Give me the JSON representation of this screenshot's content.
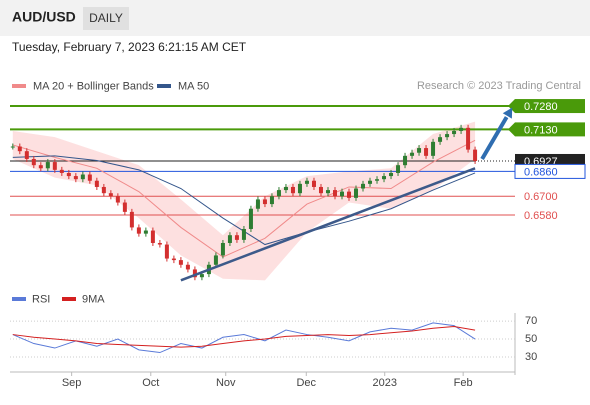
{
  "header": {
    "symbol": "AUD/USD",
    "period": "DAILY",
    "timestamp": "Tuesday, February 7, 2023 6:21:15 AM CET",
    "credit": "Research © 2023 Trading Central"
  },
  "chart_data": {
    "type": "candlestick",
    "close": [
      0.702,
      0.699,
      0.694,
      0.69,
      0.688,
      0.692,
      0.687,
      0.685,
      0.683,
      0.681,
      0.684,
      0.68,
      0.676,
      0.672,
      0.67,
      0.666,
      0.66,
      0.65,
      0.646,
      0.648,
      0.64,
      0.639,
      0.63,
      0.629,
      0.626,
      0.623,
      0.618,
      0.62,
      0.626,
      0.632,
      0.64,
      0.645,
      0.642,
      0.649,
      0.662,
      0.668,
      0.665,
      0.67,
      0.674,
      0.676,
      0.672,
      0.678,
      0.68,
      0.676,
      0.672,
      0.674,
      0.67,
      0.673,
      0.669,
      0.675,
      0.678,
      0.68,
      0.681,
      0.683,
      0.685,
      0.69,
      0.696,
      0.698,
      0.701,
      0.696,
      0.705,
      0.708,
      0.71,
      0.712,
      0.714,
      0.7,
      0.6927
    ],
    "up_color": "#2e7d32",
    "down_color": "#d32f2f",
    "xlim": [
      -0.4,
      71.7
    ],
    "xticks": [
      {
        "value": 8.4,
        "label": "Sep"
      },
      {
        "value": 19.7,
        "label": "Oct"
      },
      {
        "value": 30.4,
        "label": "Nov"
      },
      {
        "value": 41.9,
        "label": "Dec"
      },
      {
        "value": 53.1,
        "label": "2023"
      },
      {
        "value": 64.3,
        "label": "Feb"
      }
    ],
    "ylim": [
      0.613,
      0.7351
    ],
    "bands": {
      "color": "#fde0e0",
      "x": [
        0,
        6,
        12,
        18,
        24,
        30,
        36,
        42,
        48,
        54,
        60,
        66
      ],
      "upper": [
        0.712,
        0.708,
        0.699,
        0.69,
        0.668,
        0.645,
        0.67,
        0.683,
        0.686,
        0.688,
        0.71,
        0.718
      ],
      "lower": [
        0.694,
        0.682,
        0.677,
        0.656,
        0.632,
        0.617,
        0.616,
        0.647,
        0.666,
        0.662,
        0.674,
        0.694
      ]
    },
    "series": [
      {
        "name": "MA 20 + Bollinger Bands",
        "color": "#f08a8a",
        "x": [
          0,
          6,
          12,
          18,
          24,
          30,
          36,
          42,
          48,
          54,
          60,
          66
        ],
        "values": [
          0.703,
          0.695,
          0.688,
          0.673,
          0.65,
          0.631,
          0.643,
          0.665,
          0.676,
          0.675,
          0.692,
          0.706
        ]
      },
      {
        "name": "MA 50",
        "color": "#34568b",
        "x": [
          0,
          6,
          12,
          18,
          24,
          30,
          36,
          42,
          48,
          54,
          60,
          66
        ],
        "values": [
          0.695,
          0.696,
          0.693,
          0.687,
          0.675,
          0.656,
          0.639,
          0.647,
          0.654,
          0.662,
          0.674,
          0.685
        ]
      }
    ],
    "trendline": {
      "color": "#3d5a8a",
      "x": [
        24,
        66
      ],
      "values": [
        0.616,
        0.688
      ]
    },
    "arrow": {
      "color": "#2f6db0",
      "x": [
        67,
        71.3
      ],
      "values": [
        0.694,
        0.727
      ]
    },
    "levels": [
      {
        "value": 0.728,
        "label": "0.7280",
        "color": "#4a9a0a",
        "style": "box"
      },
      {
        "value": 0.713,
        "label": "0.7130",
        "color": "#4a9a0a",
        "style": "box"
      },
      {
        "value": 0.6927,
        "label": "0.6927",
        "color": "#222222",
        "style": "current"
      },
      {
        "value": 0.686,
        "label": "0.6860",
        "color": "#2255dd",
        "style": "outline"
      },
      {
        "value": 0.67,
        "label": "0.6700",
        "color": "#e05050",
        "style": "text"
      },
      {
        "value": 0.658,
        "label": "0.6580",
        "color": "#e05050",
        "style": "text"
      }
    ],
    "rsi": {
      "ylim": [
        10,
        79
      ],
      "yticks": [
        30,
        50,
        70
      ],
      "x": [
        0,
        3,
        6,
        9,
        12,
        15,
        18,
        21,
        24,
        27,
        30,
        33,
        36,
        39,
        42,
        45,
        48,
        51,
        54,
        57,
        60,
        63,
        66
      ],
      "series": [
        {
          "name": "RSI",
          "color": "#5a7ad8",
          "values": [
            55,
            45,
            40,
            48,
            42,
            50,
            38,
            35,
            45,
            40,
            52,
            55,
            48,
            60,
            55,
            52,
            48,
            58,
            62,
            60,
            68,
            65,
            50
          ]
        },
        {
          "name": "9MA",
          "color": "#d42020",
          "values": [
            55,
            52,
            50,
            48,
            45,
            44,
            43,
            42,
            41,
            42,
            45,
            48,
            50,
            53,
            54,
            55,
            54,
            55,
            57,
            59,
            62,
            64,
            60
          ]
        }
      ]
    }
  }
}
